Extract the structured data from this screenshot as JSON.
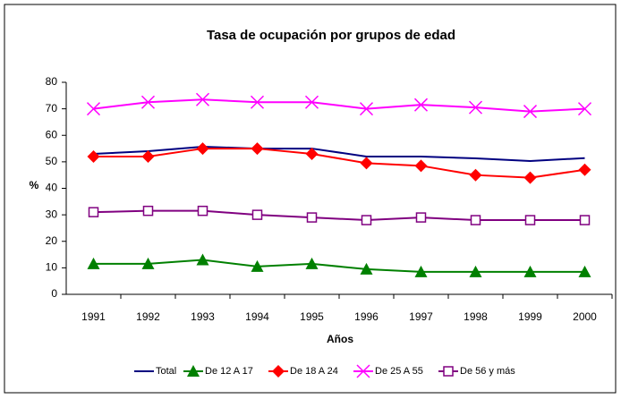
{
  "chart_data": {
    "type": "line",
    "title": "Tasa de ocupación por grupos de edad",
    "x_label": "Años",
    "y_label": "%",
    "categories": [
      "1991",
      "1992",
      "1993",
      "1994",
      "1995",
      "1996",
      "1997",
      "1998",
      "1999",
      "2000"
    ],
    "series": [
      {
        "name": "Total",
        "color": "#000080",
        "marker": "none",
        "values": [
          53,
          54,
          55.7,
          55,
          55,
          52,
          52,
          51.3,
          50.3,
          51.4
        ]
      },
      {
        "name": "De 12 A 17",
        "color": "#008000",
        "marker": "triangle",
        "values": [
          11.5,
          11.5,
          13,
          10.5,
          11.5,
          9.5,
          8.5,
          8.5,
          8.5,
          8.5
        ]
      },
      {
        "name": "De 18 A 24",
        "color": "#ff0000",
        "marker": "diamond",
        "values": [
          52,
          52,
          55,
          55,
          53,
          49.5,
          48.5,
          45,
          44,
          47
        ]
      },
      {
        "name": "De 25 A 55",
        "color": "#ff00ff",
        "marker": "x",
        "values": [
          70,
          72.5,
          73.5,
          72.5,
          72.5,
          70,
          71.5,
          70.5,
          69,
          70
        ]
      },
      {
        "name": "De 56 y más",
        "color": "#800080",
        "marker": "square",
        "values": [
          31,
          31.5,
          31.5,
          30,
          29,
          28,
          29,
          28,
          28,
          28
        ]
      }
    ],
    "ylim": [
      0,
      80
    ],
    "yticks": [
      0,
      10,
      20,
      30,
      40,
      50,
      60,
      70,
      80
    ],
    "grid": false,
    "legend": "bottom"
  }
}
